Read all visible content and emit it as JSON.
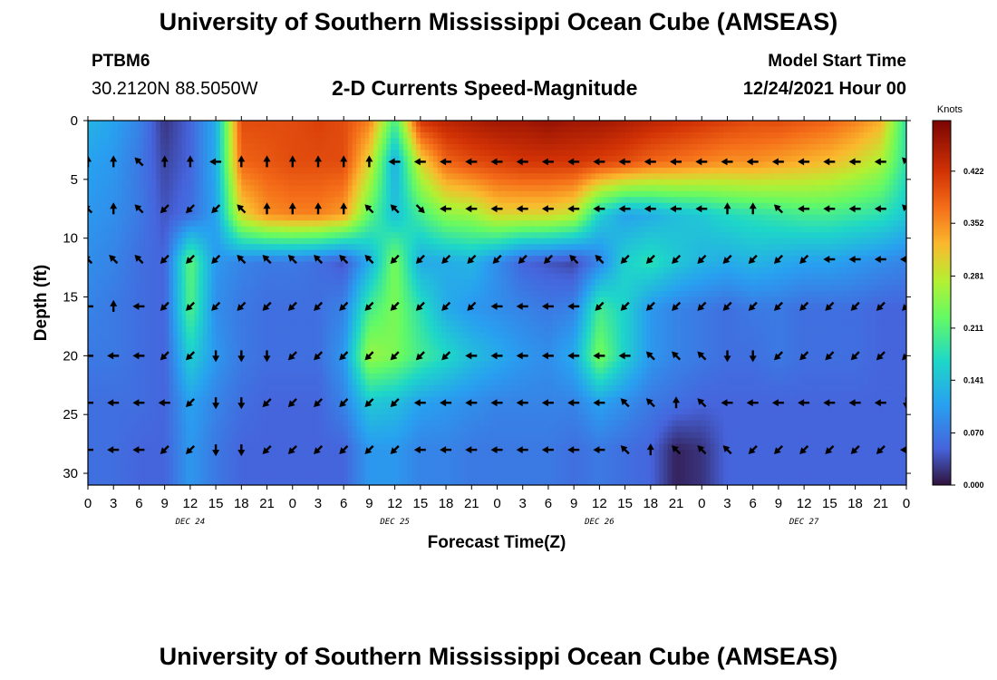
{
  "header": {
    "title": "University of Southern Mississippi Ocean Cube (AMSEAS)",
    "station": "PTBM6",
    "coords": "30.2120N  88.5050W",
    "subtitle": "2-D Currents Speed-Magnitude",
    "start_label": "Model Start Time",
    "start_value": "12/24/2021 Hour 00"
  },
  "footer": {
    "title": "University of Southern Mississippi Ocean Cube (AMSEAS)"
  },
  "chart_data": {
    "type": "heatmap",
    "title": "2-D Currents Speed-Magnitude",
    "xlabel": "Forecast Time(Z)",
    "ylabel": "Depth (ft)",
    "x_range_hours": [
      0,
      96
    ],
    "y_range_ft": [
      0,
      31
    ],
    "x_tick_labels": [
      "0",
      "3",
      "6",
      "9",
      "12",
      "15",
      "18",
      "21",
      "0",
      "3",
      "6",
      "9",
      "12",
      "15",
      "18",
      "21",
      "0",
      "3",
      "6",
      "9",
      "12",
      "15",
      "18",
      "21",
      "0",
      "3",
      "6",
      "9",
      "12",
      "15",
      "18",
      "21",
      "0"
    ],
    "y_ticks": [
      0,
      5,
      10,
      15,
      20,
      25,
      30
    ],
    "day_labels": [
      "DEC 24",
      "DEC 25",
      "DEC 26",
      "DEC 27"
    ],
    "colorbar": {
      "unit": "Knots",
      "ticks": [
        "0.422",
        "0.352",
        "0.281",
        "0.211",
        "0.141",
        "0.070",
        "0.000"
      ],
      "min": 0.0,
      "max": 0.49
    },
    "depth_levels_ft": [
      0,
      3.5,
      8,
      12,
      16,
      20,
      24,
      28
    ],
    "times_hours": [
      0,
      3,
      6,
      9,
      12,
      15,
      18,
      21,
      24,
      27,
      30,
      33,
      36,
      39,
      42,
      45,
      48,
      51,
      54,
      57,
      60,
      63,
      66,
      69,
      72,
      75,
      78,
      81,
      84,
      87,
      90,
      93,
      96
    ],
    "speed_knots": [
      [
        0.13,
        0.11,
        0.08,
        0.02,
        0.05,
        0.12,
        0.4,
        0.4,
        0.4,
        0.41,
        0.4,
        0.36,
        0.2,
        0.42,
        0.44,
        0.45,
        0.46,
        0.46,
        0.47,
        0.46,
        0.46,
        0.45,
        0.44,
        0.43,
        0.42,
        0.41,
        0.4,
        0.4,
        0.39,
        0.38,
        0.36,
        0.33,
        0.18
      ],
      [
        0.11,
        0.1,
        0.07,
        0.03,
        0.05,
        0.12,
        0.38,
        0.39,
        0.4,
        0.4,
        0.4,
        0.3,
        0.12,
        0.3,
        0.38,
        0.4,
        0.41,
        0.42,
        0.42,
        0.42,
        0.41,
        0.4,
        0.38,
        0.37,
        0.36,
        0.35,
        0.35,
        0.34,
        0.33,
        0.32,
        0.3,
        0.27,
        0.18
      ],
      [
        0.1,
        0.09,
        0.07,
        0.04,
        0.06,
        0.11,
        0.3,
        0.35,
        0.36,
        0.36,
        0.34,
        0.22,
        0.14,
        0.2,
        0.25,
        0.26,
        0.3,
        0.3,
        0.3,
        0.28,
        0.16,
        0.11,
        0.12,
        0.14,
        0.15,
        0.17,
        0.18,
        0.19,
        0.2,
        0.2,
        0.19,
        0.18,
        0.15
      ],
      [
        0.09,
        0.08,
        0.06,
        0.05,
        0.22,
        0.1,
        0.08,
        0.07,
        0.07,
        0.06,
        0.04,
        0.12,
        0.24,
        0.12,
        0.12,
        0.13,
        0.09,
        0.05,
        0.04,
        0.03,
        0.08,
        0.16,
        0.18,
        0.15,
        0.13,
        0.12,
        0.13,
        0.12,
        0.11,
        0.11,
        0.1,
        0.09,
        0.08
      ],
      [
        0.08,
        0.07,
        0.06,
        0.05,
        0.21,
        0.09,
        0.07,
        0.06,
        0.06,
        0.06,
        0.08,
        0.2,
        0.24,
        0.18,
        0.12,
        0.1,
        0.09,
        0.08,
        0.07,
        0.08,
        0.2,
        0.16,
        0.1,
        0.08,
        0.07,
        0.06,
        0.07,
        0.07,
        0.06,
        0.06,
        0.06,
        0.05,
        0.05
      ],
      [
        0.07,
        0.07,
        0.06,
        0.05,
        0.16,
        0.1,
        0.07,
        0.06,
        0.06,
        0.06,
        0.1,
        0.26,
        0.24,
        0.2,
        0.17,
        0.14,
        0.12,
        0.1,
        0.09,
        0.12,
        0.24,
        0.16,
        0.1,
        0.08,
        0.07,
        0.06,
        0.06,
        0.07,
        0.06,
        0.06,
        0.06,
        0.05,
        0.05
      ],
      [
        0.06,
        0.06,
        0.06,
        0.05,
        0.11,
        0.08,
        0.06,
        0.05,
        0.05,
        0.05,
        0.08,
        0.15,
        0.14,
        0.11,
        0.1,
        0.09,
        0.08,
        0.08,
        0.08,
        0.08,
        0.11,
        0.09,
        0.07,
        0.06,
        0.05,
        0.05,
        0.05,
        0.05,
        0.05,
        0.05,
        0.05,
        0.05,
        0.05
      ],
      [
        0.06,
        0.06,
        0.05,
        0.05,
        0.1,
        0.07,
        0.05,
        0.05,
        0.05,
        0.05,
        0.05,
        0.1,
        0.1,
        0.08,
        0.08,
        0.07,
        0.07,
        0.07,
        0.07,
        0.06,
        0.07,
        0.06,
        0.05,
        0.01,
        0.02,
        0.05,
        0.05,
        0.05,
        0.05,
        0.05,
        0.05,
        0.05,
        0.05
      ]
    ],
    "arrow_depths_ft": [
      3.5,
      7.5,
      11.8,
      15.8,
      20,
      24,
      28
    ],
    "arrow_times_hours": [
      0,
      3,
      6,
      9,
      12,
      15,
      18,
      21,
      24,
      27,
      30,
      33,
      36,
      39,
      42,
      45,
      48,
      51,
      54,
      57,
      60,
      63,
      66,
      69,
      72,
      75,
      78,
      81,
      84,
      87,
      90,
      93,
      96
    ],
    "arrow_direction_deg": [
      [
        0,
        0,
        315,
        0,
        0,
        270,
        0,
        0,
        0,
        0,
        0,
        0,
        270,
        270,
        270,
        270,
        270,
        270,
        270,
        270,
        270,
        270,
        270,
        270,
        270,
        270,
        270,
        270,
        270,
        270,
        270,
        270,
        315
      ],
      [
        315,
        0,
        315,
        225,
        225,
        225,
        315,
        0,
        0,
        0,
        0,
        315,
        315,
        135,
        270,
        270,
        270,
        270,
        270,
        270,
        270,
        270,
        270,
        270,
        270,
        0,
        0,
        315,
        270,
        270,
        270,
        270,
        315
      ],
      [
        315,
        315,
        315,
        225,
        225,
        225,
        315,
        315,
        315,
        315,
        315,
        315,
        225,
        225,
        225,
        225,
        225,
        225,
        225,
        315,
        315,
        225,
        225,
        225,
        225,
        225,
        225,
        225,
        225,
        270,
        270,
        270,
        270
      ],
      [
        270,
        0,
        270,
        225,
        225,
        225,
        225,
        225,
        225,
        225,
        225,
        225,
        225,
        225,
        225,
        225,
        270,
        270,
        270,
        270,
        225,
        225,
        225,
        225,
        225,
        225,
        225,
        225,
        225,
        225,
        225,
        225,
        225
      ],
      [
        270,
        270,
        270,
        225,
        225,
        180,
        180,
        180,
        225,
        225,
        225,
        225,
        225,
        225,
        225,
        270,
        270,
        270,
        270,
        270,
        270,
        270,
        315,
        315,
        315,
        180,
        180,
        225,
        225,
        225,
        225,
        225,
        225
      ],
      [
        270,
        270,
        270,
        270,
        225,
        180,
        180,
        225,
        225,
        225,
        225,
        225,
        225,
        270,
        270,
        270,
        270,
        270,
        270,
        270,
        270,
        315,
        315,
        0,
        315,
        270,
        270,
        270,
        270,
        270,
        270,
        270,
        180
      ],
      [
        270,
        270,
        270,
        225,
        225,
        180,
        180,
        225,
        225,
        225,
        225,
        225,
        225,
        270,
        270,
        270,
        270,
        270,
        270,
        270,
        270,
        315,
        0,
        315,
        315,
        315,
        225,
        225,
        225,
        225,
        225,
        225,
        270
      ]
    ]
  }
}
